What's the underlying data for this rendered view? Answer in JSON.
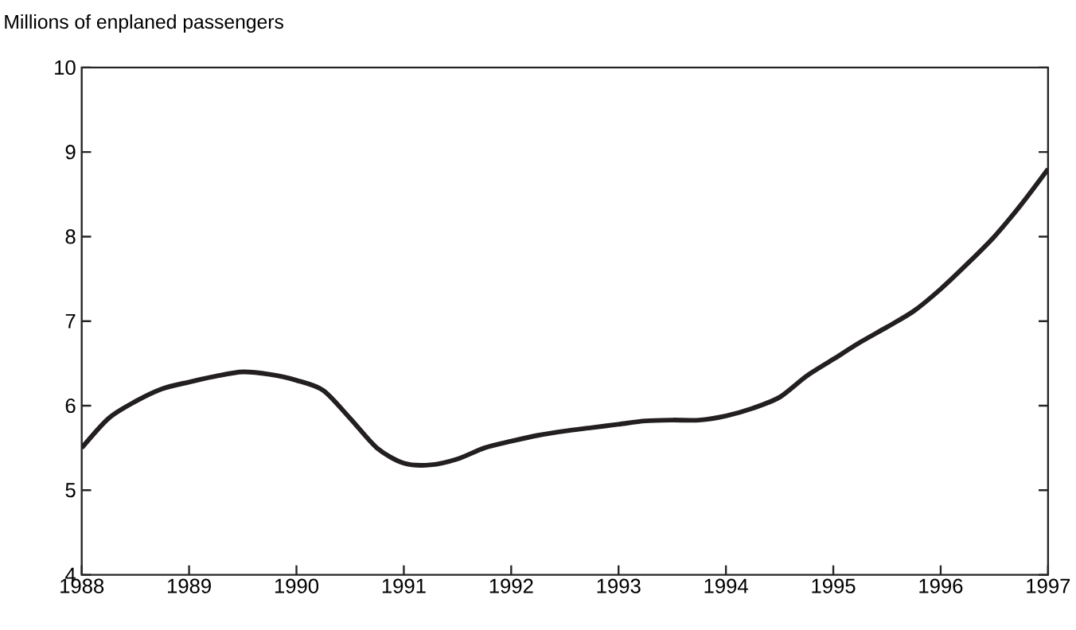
{
  "chart_data": {
    "type": "line",
    "ylabel": "Millions of enplaned passengers",
    "x": [
      1988,
      1988.25,
      1988.5,
      1988.75,
      1989,
      1989.25,
      1989.5,
      1989.75,
      1990,
      1990.25,
      1990.5,
      1990.75,
      1991,
      1991.25,
      1991.5,
      1991.75,
      1992,
      1992.25,
      1992.5,
      1992.75,
      1993,
      1993.25,
      1993.5,
      1993.75,
      1994,
      1994.25,
      1994.5,
      1994.75,
      1995,
      1995.25,
      1995.5,
      1995.75,
      1996,
      1996.25,
      1996.5,
      1996.75,
      1997
    ],
    "series": [
      {
        "color": "#231f20",
        "values": [
          5.5,
          5.85,
          6.05,
          6.2,
          6.28,
          6.35,
          6.4,
          6.37,
          6.3,
          6.18,
          5.85,
          5.5,
          5.32,
          5.3,
          5.37,
          5.5,
          5.58,
          5.65,
          5.7,
          5.74,
          5.78,
          5.82,
          5.83,
          5.83,
          5.88,
          5.97,
          6.1,
          6.35,
          6.55,
          6.75,
          6.93,
          7.12,
          7.38,
          7.68,
          8.0,
          8.38,
          8.8
        ]
      }
    ],
    "xlim": [
      1988,
      1997
    ],
    "ylim": [
      4,
      10
    ],
    "xticks": [
      1988,
      1989,
      1990,
      1991,
      1992,
      1993,
      1994,
      1995,
      1996,
      1997
    ],
    "yticks": [
      4,
      5,
      6,
      7,
      8,
      9,
      10
    ],
    "grid": false,
    "marker": "none",
    "line_style": "solid"
  }
}
